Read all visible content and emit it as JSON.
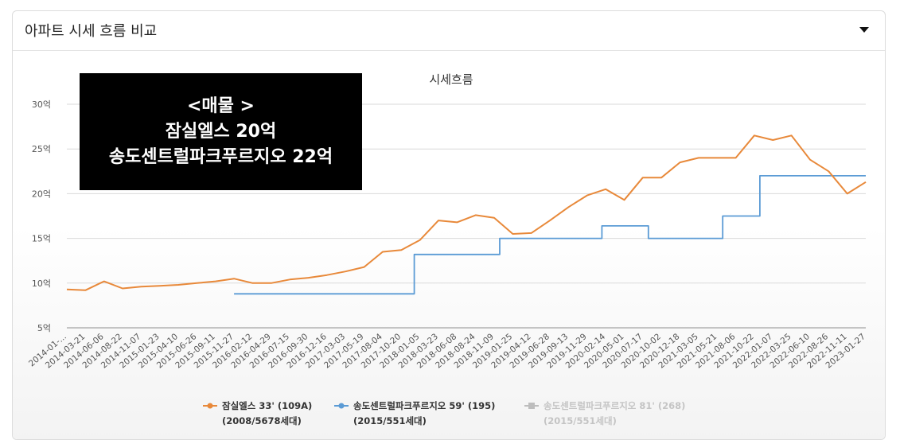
{
  "panel": {
    "title": "아파트 시세 흐름 비교",
    "toggle_icon": "chevron-down-icon"
  },
  "overlay": {
    "line1": "<매물 >",
    "line2": "잠실엘스 20억",
    "line3": "송도센트럴파크푸르지오 22억"
  },
  "colors": {
    "orange": "#e8893a",
    "blue": "#5b9bd5",
    "gray": "#bdbdbd",
    "grid": "#d9d9d9"
  },
  "chart_data": {
    "type": "line",
    "title": "시세흐름",
    "y_unit": "억",
    "ylim": [
      5,
      30
    ],
    "yticks": [
      "5억",
      "10억",
      "15억",
      "20억",
      "25억",
      "30억"
    ],
    "x_tick_labels": [
      "2014-01-...",
      "2014-03-21",
      "2014-06-06",
      "2014-08-22",
      "2014-11-07",
      "2015-01-23",
      "2015-04-10",
      "2015-06-26",
      "2015-09-11",
      "2015-11-27",
      "2016-02-12",
      "2016-04-29",
      "2016-07-15",
      "2016-09-30",
      "2016-12-16",
      "2017-03-03",
      "2017-05-19",
      "2017-08-04",
      "2017-10-20",
      "2018-01-05",
      "2018-03-23",
      "2018-06-08",
      "2018-08-24",
      "2018-11-09",
      "2019-01-25",
      "2019-04-12",
      "2019-06-28",
      "2019-09-13",
      "2019-11-29",
      "2020-02-14",
      "2020-05-01",
      "2020-07-17",
      "2020-10-02",
      "2020-12-18",
      "2021-03-05",
      "2021-05-21",
      "2021-08-06",
      "2021-10-22",
      "2022-01-07",
      "2022-03-25",
      "2022-06-10",
      "2022-08-26",
      "2022-11-11",
      "2023-01-27"
    ],
    "legend": [
      {
        "name_line1": "잠실엘스 33' (109A)",
        "name_line2": "(2008/5678세대)",
        "color": "#e8893a",
        "muted": false
      },
      {
        "name_line1": "송도센트럴파크푸르지오 59' (195)",
        "name_line2": "(2015/551세대)",
        "color": "#5b9bd5",
        "muted": false
      },
      {
        "name_line1": "송도센트럴파크푸르지오 81' (268)",
        "name_line2": "(2015/551세대)",
        "color": "#bdbdbd",
        "muted": true
      }
    ],
    "series": [
      {
        "color": "#e8893a",
        "x_index": [
          0,
          1,
          2,
          3,
          4,
          5,
          6,
          7,
          8,
          9,
          10,
          11,
          12,
          13,
          14,
          15,
          16,
          17,
          18,
          19,
          20,
          21,
          22,
          23,
          24,
          25,
          26,
          27,
          28,
          29,
          30,
          31,
          32,
          33,
          34,
          35,
          36,
          37,
          38,
          39,
          40,
          41,
          42,
          43
        ],
        "values": [
          9.3,
          9.2,
          10.2,
          9.4,
          9.6,
          9.7,
          9.8,
          10.0,
          10.2,
          10.5,
          10.0,
          10.0,
          10.4,
          10.6,
          10.9,
          11.3,
          11.8,
          13.5,
          13.7,
          14.8,
          17.0,
          16.8,
          17.6,
          17.3,
          15.5,
          15.6,
          17.0,
          18.5,
          19.8,
          20.5,
          19.3,
          21.8,
          21.8,
          23.5,
          24.0,
          24.0,
          24.0,
          26.5,
          26.0,
          26.5,
          23.8,
          22.5,
          20.0,
          21.3
        ]
      },
      {
        "color": "#5b9bd5",
        "x_index": [
          9,
          18.7,
          18.7,
          23.3,
          23.3,
          28.8,
          28.8,
          31.3,
          31.3,
          35.3,
          35.3,
          37.3,
          37.3,
          43
        ],
        "values": [
          8.8,
          8.8,
          13.2,
          13.2,
          15.0,
          15.0,
          16.4,
          16.4,
          15.0,
          15.0,
          17.5,
          17.5,
          22.0,
          22.0
        ]
      },
      {
        "color": "#bdbdbd",
        "x_index": [
          0,
          43
        ],
        "values": [
          5.0,
          5.0
        ]
      }
    ]
  }
}
